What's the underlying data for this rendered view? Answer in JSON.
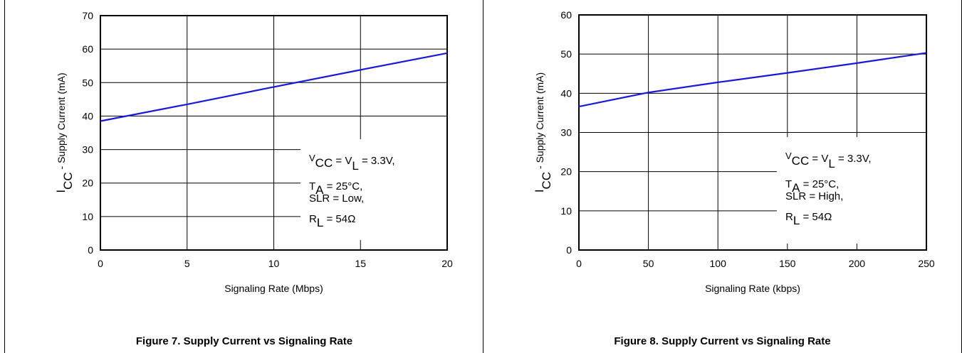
{
  "chart_data": [
    {
      "type": "line",
      "caption": "Figure 7. Supply Current vs Signaling Rate",
      "ylabel_main": "I",
      "ylabel_sub": "CC",
      "ylabel_rest": " - Supply Current (mA)",
      "xlabel": "Signaling Rate (Mbps)",
      "xlim": [
        0,
        20
      ],
      "ylim": [
        0,
        70
      ],
      "xticks": [
        0,
        5,
        10,
        15,
        20
      ],
      "yticks": [
        0,
        10,
        20,
        30,
        40,
        50,
        60,
        70
      ],
      "grid": true,
      "line_color": "#1a1ad6",
      "series": [
        {
          "x": [
            0,
            5,
            10,
            15,
            20
          ],
          "y": [
            38.5,
            43.5,
            48.7,
            53.8,
            58.8
          ]
        }
      ],
      "annotation": {
        "vcc_main": "V",
        "vcc_sub": "CC",
        "vl_mid": " = V",
        "vl_sub": "L",
        "vl_rest": " = 3.3V,",
        "ta_main": "T",
        "ta_sub": "A",
        "ta_rest": " = 25°C,",
        "slr": "SLR = Low,",
        "rl_main": "R",
        "rl_sub": "L",
        "rl_rest": " = 54Ω"
      }
    },
    {
      "type": "line",
      "caption": "Figure 8. Supply Current vs Signaling Rate",
      "ylabel_main": "I",
      "ylabel_sub": "CC",
      "ylabel_rest": " - Supply Current (mA)",
      "xlabel": "Signaling Rate (kbps)",
      "xlim": [
        0,
        250
      ],
      "ylim": [
        0,
        60
      ],
      "xticks": [
        0,
        50,
        100,
        150,
        200,
        250
      ],
      "yticks": [
        0,
        10,
        20,
        30,
        40,
        50,
        60
      ],
      "grid": true,
      "line_color": "#1a1ad6",
      "series": [
        {
          "x": [
            0,
            50,
            100,
            150,
            200,
            250
          ],
          "y": [
            36.6,
            40.2,
            42.8,
            45.2,
            47.7,
            50.3
          ]
        }
      ],
      "annotation": {
        "vcc_main": "V",
        "vcc_sub": "CC",
        "vl_mid": " = V",
        "vl_sub": "L",
        "vl_rest": " = 3.3V,",
        "ta_main": "T",
        "ta_sub": "A",
        "ta_rest": " = 25°C,",
        "slr": "SLR = High,",
        "rl_main": "R",
        "rl_sub": "L",
        "rl_rest": " = 54Ω"
      }
    }
  ]
}
